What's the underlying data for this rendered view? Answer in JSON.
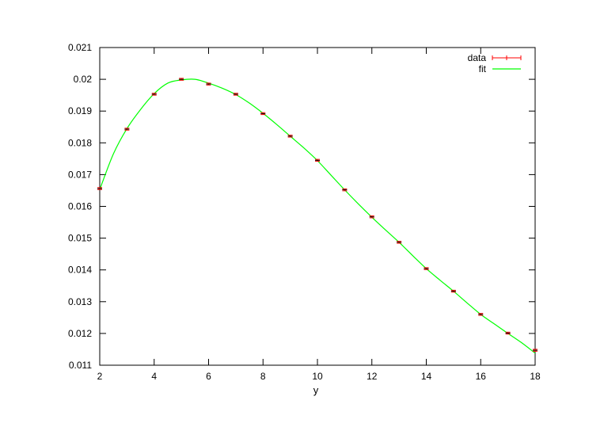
{
  "chart_data": {
    "type": "line",
    "xlabel": "y",
    "ylabel": "",
    "title": "",
    "xlim": [
      2,
      18
    ],
    "ylim": [
      0.011,
      0.021
    ],
    "xticks": [
      2,
      4,
      6,
      8,
      10,
      12,
      14,
      16,
      18
    ],
    "yticks": [
      0.011,
      0.012,
      0.013,
      0.014,
      0.015,
      0.016,
      0.017,
      0.018,
      0.019,
      0.02,
      0.021
    ],
    "grid": false,
    "legend_position": "top-right",
    "series": [
      {
        "name": "data",
        "kind": "errorbar",
        "color": "#ff0000",
        "x": [
          2,
          3,
          4,
          5,
          6,
          7,
          8,
          9,
          10,
          11,
          12,
          13,
          14,
          15,
          16,
          17,
          18
        ],
        "y": [
          0.01656,
          0.01843,
          0.01953,
          0.02,
          0.01985,
          0.01953,
          0.01892,
          0.01821,
          0.01745,
          0.01652,
          0.01567,
          0.01487,
          0.01404,
          0.01333,
          0.0126,
          0.01201,
          0.01147
        ],
        "yerr": [
          3e-05,
          3e-05,
          3e-05,
          3e-05,
          3e-05,
          3e-05,
          3e-05,
          3e-05,
          3e-05,
          3e-05,
          3e-05,
          3e-05,
          3e-05,
          3e-05,
          3e-05,
          3e-05,
          3e-05
        ]
      },
      {
        "name": "fit",
        "kind": "line",
        "color": "#00ff00",
        "x": [
          2,
          2.5,
          3,
          3.5,
          4,
          4.5,
          5,
          5.5,
          6,
          6.5,
          7,
          7.5,
          8,
          8.5,
          9,
          9.5,
          10,
          10.5,
          11,
          11.5,
          12,
          12.5,
          13,
          13.5,
          14,
          14.5,
          15,
          15.5,
          16,
          16.5,
          17,
          17.5,
          18
        ],
        "y": [
          0.01653,
          0.01765,
          0.01845,
          0.01905,
          0.01955,
          0.01988,
          0.01998,
          0.02,
          0.01988,
          0.01972,
          0.01952,
          0.01925,
          0.01893,
          0.01858,
          0.01821,
          0.01784,
          0.01744,
          0.01698,
          0.01652,
          0.01608,
          0.01566,
          0.01526,
          0.01487,
          0.01445,
          0.01404,
          0.01368,
          0.01333,
          0.01296,
          0.0126,
          0.0123,
          0.012,
          0.01171,
          0.01138
        ]
      }
    ]
  }
}
